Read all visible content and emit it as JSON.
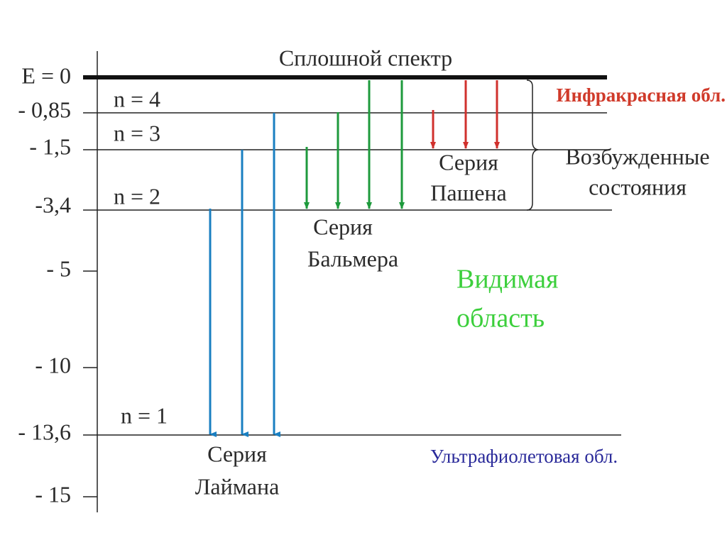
{
  "axis_labels": [
    "E = 0",
    "- 0,85",
    "- 1,5",
    "-3,4",
    "- 5",
    "- 10",
    "- 13,6",
    "- 15"
  ],
  "continuum": "Сплошной спектр",
  "levels": [
    "n = 4",
    "n = 3",
    "n = 2",
    "n = 1"
  ],
  "series": {
    "lyman": [
      "Серия",
      "Лаймана"
    ],
    "balmer": [
      "Серия",
      "Бальмера"
    ],
    "paschen": [
      "Серия",
      "Пашена"
    ]
  },
  "regions": {
    "infrared": "Инфракрасная обл.",
    "excited": [
      "Возбужденные",
      "состояния"
    ],
    "visible": [
      "Видимая",
      "область"
    ],
    "ultraviolet": "Ультрафиолетовая обл."
  }
}
